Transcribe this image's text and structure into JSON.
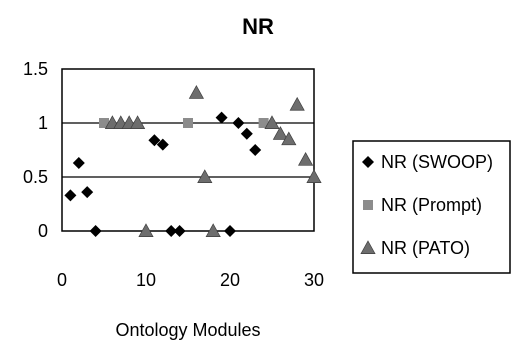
{
  "chart_data": {
    "type": "scatter",
    "title": "NR",
    "xlabel": "Ontology Modules",
    "ylabel": "",
    "xlim": [
      0,
      30
    ],
    "ylim": [
      0,
      1.5
    ],
    "x_ticks": [
      "0",
      "10",
      "20",
      "30"
    ],
    "x_tick_values": [
      0,
      10,
      20,
      30
    ],
    "y_ticks": [
      "0",
      "0.5",
      "1",
      "1.5"
    ],
    "y_tick_values": [
      0,
      0.5,
      1,
      1.5
    ],
    "grid": "horizontal",
    "legend_position": "right",
    "series": [
      {
        "name": "NR (SWOOP)",
        "marker": "diamond",
        "color": "#000000",
        "points": [
          [
            1,
            0.33
          ],
          [
            2,
            0.63
          ],
          [
            3,
            0.36
          ],
          [
            4,
            0.0
          ],
          [
            11,
            0.84
          ],
          [
            12,
            0.8
          ],
          [
            13,
            0.0
          ],
          [
            14,
            0.0
          ],
          [
            19,
            1.05
          ],
          [
            20,
            0.0
          ],
          [
            21,
            1.0
          ],
          [
            22,
            0.9
          ],
          [
            23,
            0.75
          ]
        ]
      },
      {
        "name": "NR (Prompt)",
        "marker": "square",
        "color": "#8c8c8c",
        "points": [
          [
            5,
            1.0
          ],
          [
            15,
            1.0
          ],
          [
            24,
            1.0
          ]
        ]
      },
      {
        "name": "NR (PATO)",
        "marker": "triangle",
        "color": "#6d6d6d",
        "points": [
          [
            6,
            1.0
          ],
          [
            7,
            1.0
          ],
          [
            8,
            1.0
          ],
          [
            9,
            1.0
          ],
          [
            10,
            0.0
          ],
          [
            16,
            1.28
          ],
          [
            17,
            0.5
          ],
          [
            18,
            0.0
          ],
          [
            25,
            1.0
          ],
          [
            26,
            0.9
          ],
          [
            27,
            0.85
          ],
          [
            28,
            1.17
          ],
          [
            29,
            0.66
          ],
          [
            30,
            0.5
          ]
        ]
      }
    ]
  }
}
